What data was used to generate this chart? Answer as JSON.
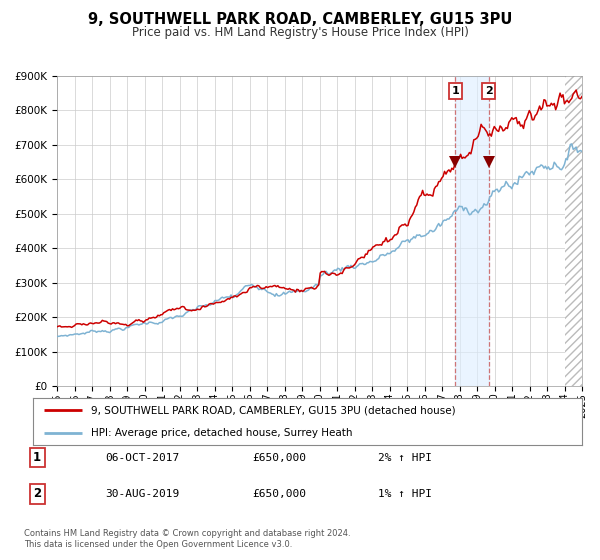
{
  "title": "9, SOUTHWELL PARK ROAD, CAMBERLEY, GU15 3PU",
  "subtitle": "Price paid vs. HM Land Registry's House Price Index (HPI)",
  "legend_line1": "9, SOUTHWELL PARK ROAD, CAMBERLEY, GU15 3PU (detached house)",
  "legend_line2": "HPI: Average price, detached house, Surrey Heath",
  "transaction1_label": "1",
  "transaction1_date": "06-OCT-2017",
  "transaction1_price": "£650,000",
  "transaction1_hpi": "2% ↑ HPI",
  "transaction2_label": "2",
  "transaction2_date": "30-AUG-2019",
  "transaction2_price": "£650,000",
  "transaction2_hpi": "1% ↑ HPI",
  "footer_line1": "Contains HM Land Registry data © Crown copyright and database right 2024.",
  "footer_line2": "This data is licensed under the Open Government Licence v3.0.",
  "red_line_color": "#cc0000",
  "blue_line_color": "#7fb3d3",
  "transaction1_x": 2017.76,
  "transaction2_x": 2019.66,
  "transaction1_y": 650000,
  "transaction2_y": 650000,
  "xlim": [
    1995,
    2025
  ],
  "ylim": [
    0,
    900000
  ],
  "yticks": [
    0,
    100000,
    200000,
    300000,
    400000,
    500000,
    600000,
    700000,
    800000,
    900000
  ],
  "xticks": [
    1995,
    1996,
    1997,
    1998,
    1999,
    2000,
    2001,
    2002,
    2003,
    2004,
    2005,
    2006,
    2007,
    2008,
    2009,
    2010,
    2011,
    2012,
    2013,
    2014,
    2015,
    2016,
    2017,
    2018,
    2019,
    2020,
    2021,
    2022,
    2023,
    2024,
    2025
  ],
  "background_color": "#ffffff",
  "plot_bg_color": "#ffffff",
  "grid_color": "#cccccc"
}
